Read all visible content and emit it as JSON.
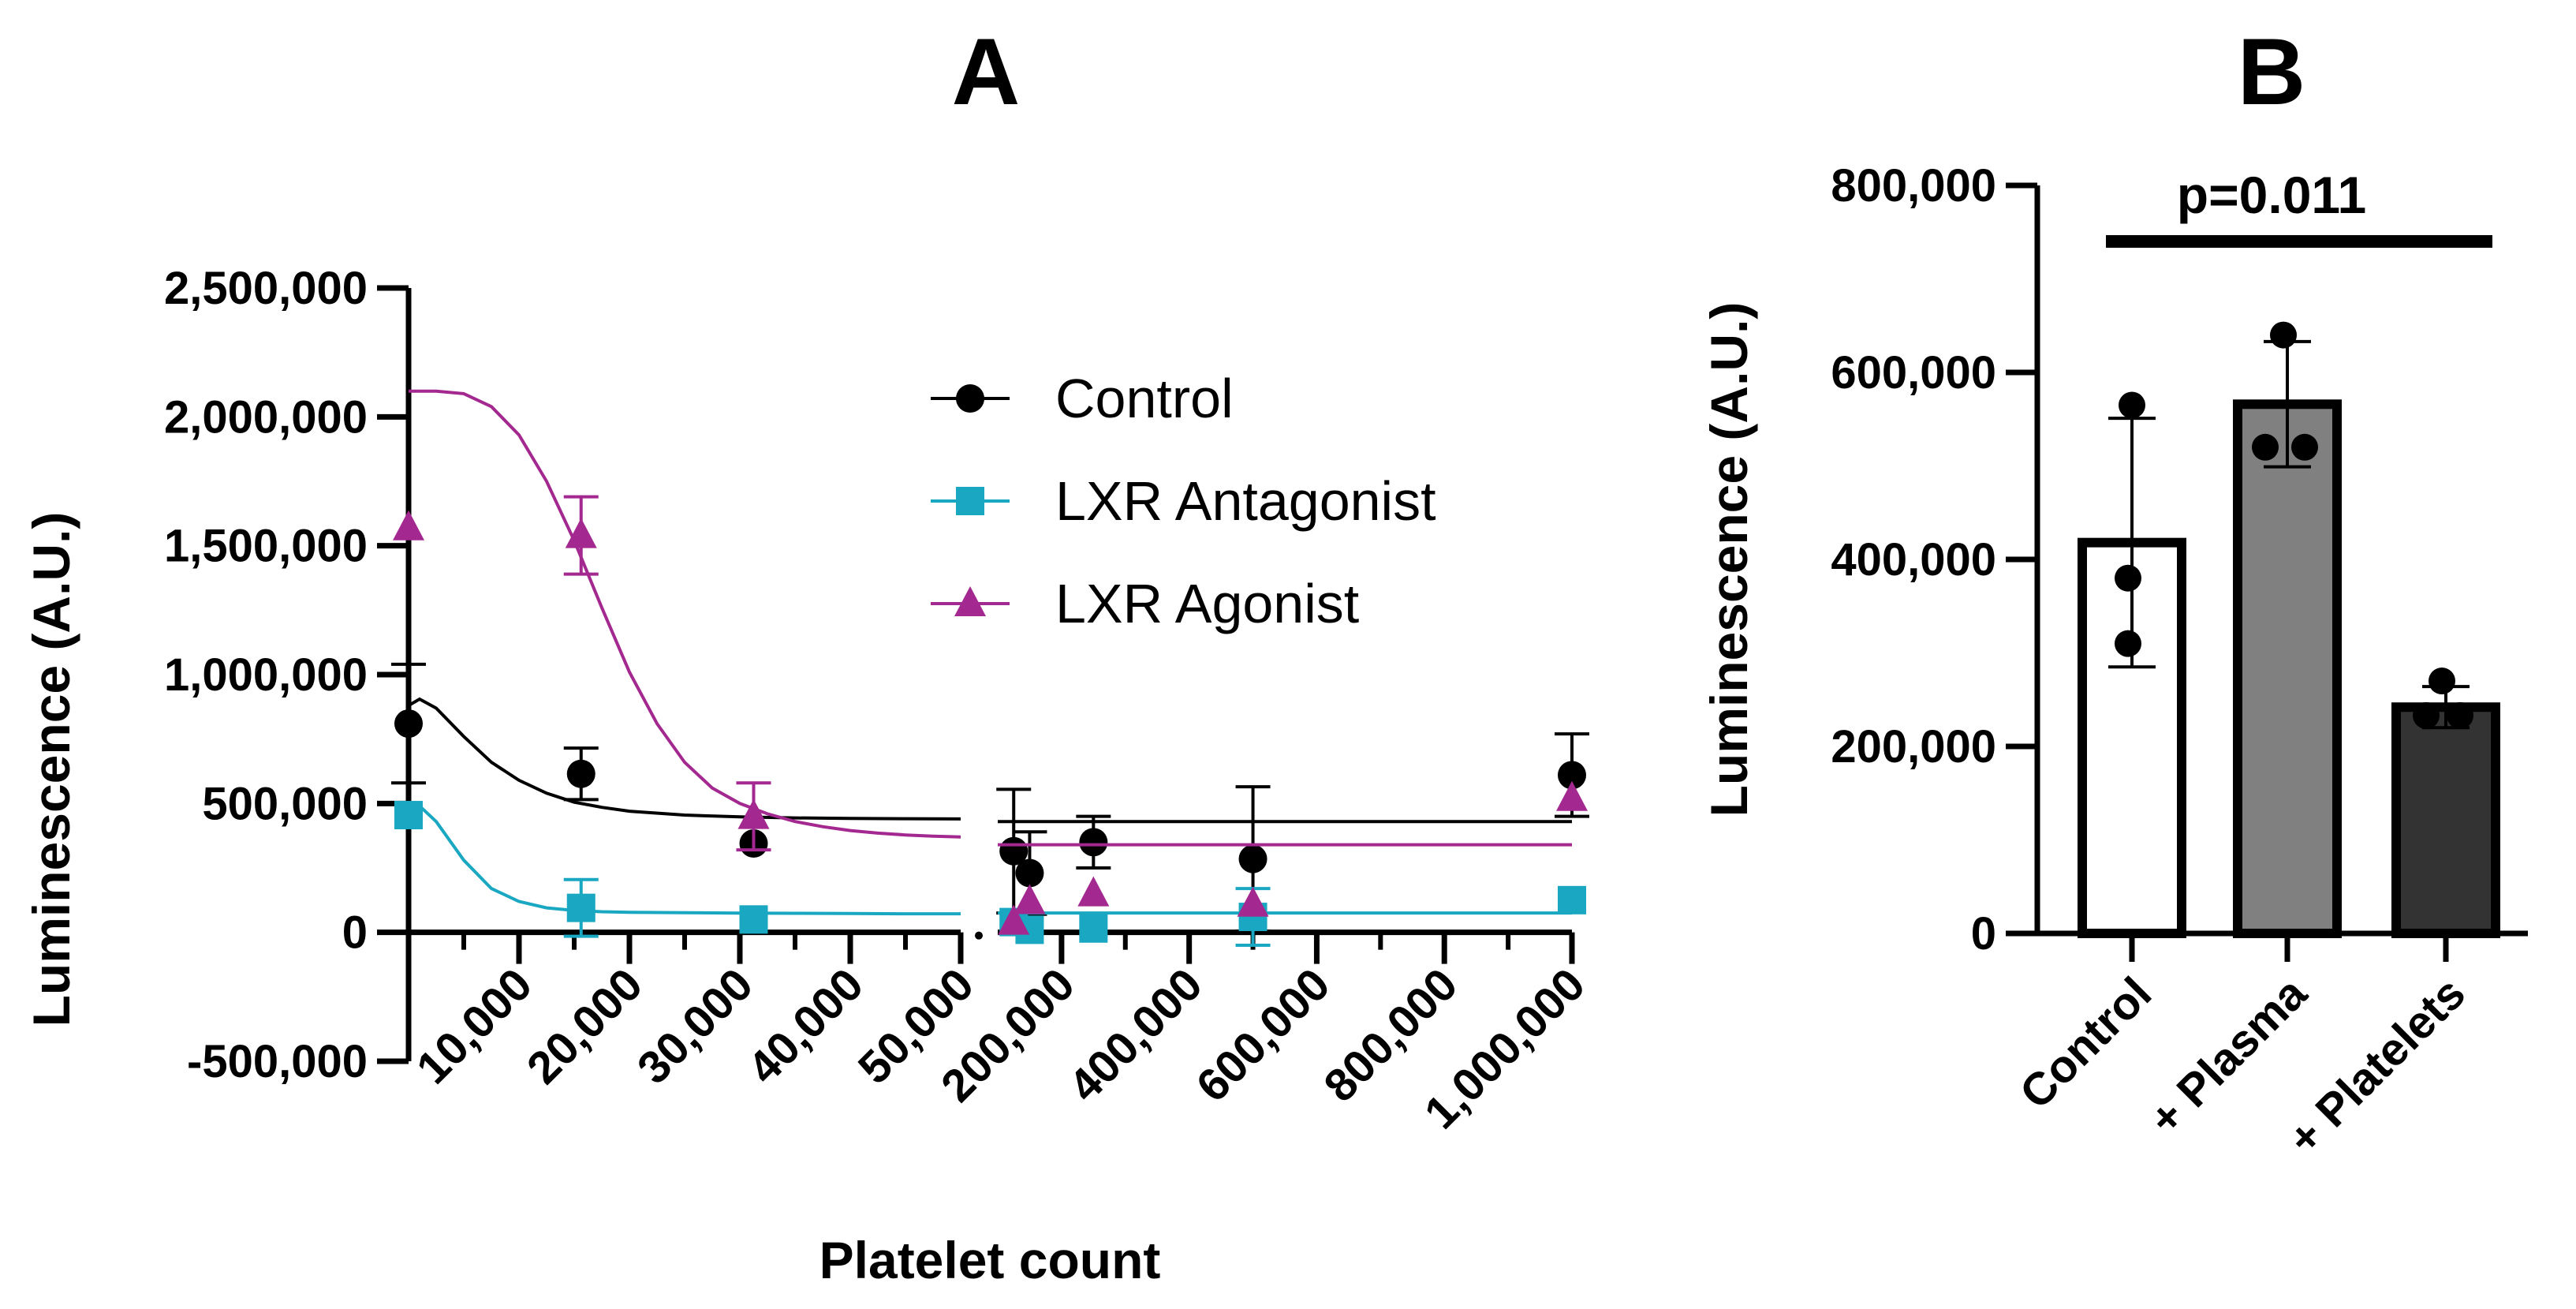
{
  "colors": {
    "control": "#000000",
    "antagonist": "#1aa7c1",
    "agonist": "#a3288f",
    "bar_control": "#ffffff",
    "bar_plasma": "#808080",
    "bar_platelets": "#333333"
  },
  "chart_data": [
    {
      "panel": "A",
      "type": "scatter",
      "title": "",
      "xlabel": "Platelet count",
      "ylabel": "Luminescence (A.U.)",
      "ylim": [
        -500000,
        2500000
      ],
      "y_ticks": [
        -500000,
        0,
        500000,
        1000000,
        1500000,
        2000000,
        2500000
      ],
      "y_tick_labels": [
        "-500,000",
        "0",
        "500,000",
        "1,000,000",
        "1,500,000",
        "2,000,000",
        "2,500,000"
      ],
      "x_segments": [
        {
          "range": [
            0,
            50000
          ],
          "ticks": [
            10000,
            20000,
            30000,
            40000,
            50000
          ],
          "tick_labels": [
            "10,000",
            "20,000",
            "30,000",
            "40,000",
            "50,000"
          ]
        },
        {
          "range": [
            100000,
            1000000
          ],
          "ticks": [
            200000,
            400000,
            600000,
            800000,
            1000000
          ],
          "tick_labels": [
            "200,000",
            "400,000",
            "600,000",
            "800,000",
            "1,000,000"
          ]
        }
      ],
      "legend": [
        "Control",
        "LXR Antagonist",
        "LXR Agonist"
      ],
      "legend_position": "top-right",
      "series": [
        {
          "name": "Control",
          "marker": "circle",
          "x": [
            0,
            15625,
            31250,
            125000,
            150000,
            250000,
            500000,
            1000000
          ],
          "y": [
            810000,
            615000,
            345000,
            315000,
            230000,
            350000,
            285000,
            610000
          ],
          "err": [
            230000,
            100000,
            0,
            240000,
            160000,
            100000,
            280000,
            160000
          ],
          "fit_x": [
            0,
            1000,
            2500,
            5000,
            7500,
            10000,
            12500,
            15000,
            17500,
            20000,
            25000,
            30000,
            35000,
            40000,
            45000,
            50000
          ],
          "fit_y": [
            880000,
            905000,
            870000,
            760000,
            660000,
            590000,
            540000,
            505000,
            485000,
            470000,
            455000,
            448000,
            444000,
            442000,
            441000,
            440000
          ],
          "plateau": 430000
        },
        {
          "name": "LXR Antagonist",
          "marker": "square",
          "x": [
            0,
            15625,
            31250,
            125000,
            150000,
            250000,
            500000,
            1000000
          ],
          "y": [
            455000,
            95000,
            50000,
            40000,
            10000,
            15000,
            60000,
            125000
          ],
          "err": [
            0,
            110000,
            0,
            0,
            0,
            0,
            110000,
            0
          ],
          "fit_x": [
            0,
            1000,
            2500,
            5000,
            7500,
            10000,
            12500,
            15000,
            17500,
            20000,
            25000,
            30000,
            35000,
            40000,
            45000,
            50000
          ],
          "fit_y": [
            480000,
            490000,
            430000,
            280000,
            170000,
            120000,
            95000,
            85000,
            80000,
            78000,
            76000,
            75000,
            74000,
            73000,
            72000,
            72000
          ],
          "plateau": 75000
        },
        {
          "name": "LXR Agonist",
          "marker": "triangle",
          "x": [
            0,
            15625,
            31250,
            125000,
            150000,
            250000,
            500000,
            1000000
          ],
          "y": [
            1570000,
            1540000,
            450000,
            40000,
            120000,
            150000,
            110000,
            520000
          ],
          "err": [
            0,
            150000,
            130000,
            0,
            0,
            0,
            0,
            0
          ],
          "fit_x": [
            0,
            2500,
            5000,
            7500,
            10000,
            12500,
            15000,
            17500,
            20000,
            22500,
            25000,
            27500,
            30000,
            32500,
            35000,
            37500,
            40000,
            42500,
            45000,
            47500,
            50000
          ],
          "fit_y": [
            2100000,
            2100000,
            2090000,
            2040000,
            1930000,
            1750000,
            1520000,
            1260000,
            1010000,
            810000,
            660000,
            560000,
            500000,
            460000,
            430000,
            410000,
            395000,
            385000,
            378000,
            373000,
            370000
          ],
          "plateau": 340000
        }
      ]
    },
    {
      "panel": "B",
      "type": "bar",
      "title": "",
      "xlabel": "",
      "ylabel": "Luminescence (A.U.)",
      "ylim": [
        0,
        800000
      ],
      "y_ticks": [
        0,
        200000,
        400000,
        600000,
        800000
      ],
      "y_tick_labels": [
        "0",
        "200,000",
        "400,000",
        "600,000",
        "800,000"
      ],
      "categories": [
        "Control",
        "+ Plasma",
        "+ Platelets"
      ],
      "values": [
        418000,
        566000,
        242000
      ],
      "sd": [
        133000,
        67000,
        22000
      ],
      "points": [
        [
          565000,
          380000,
          310000
        ],
        [
          640000,
          520000,
          520000
        ],
        [
          270000,
          233000,
          233000
        ]
      ],
      "annotation": {
        "text": "p=0.011",
        "from": "Control",
        "to": "+ Platelets"
      }
    }
  ]
}
